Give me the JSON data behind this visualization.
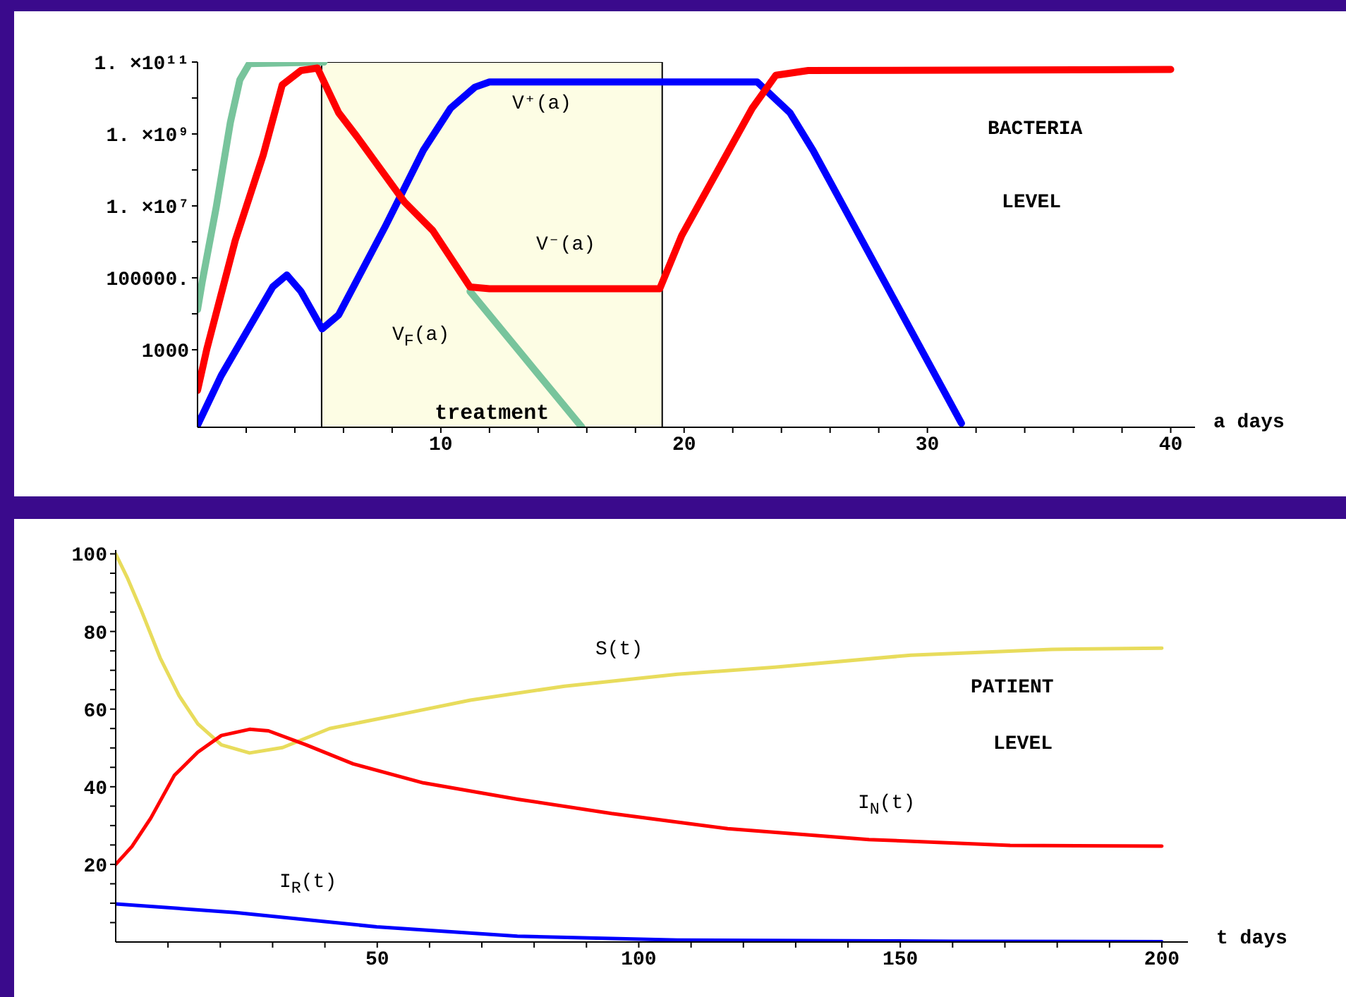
{
  "chart_data": [
    {
      "type": "line",
      "log": true,
      "xlabel": "a days",
      "xlim": [
        0,
        41
      ],
      "xticks": [
        {
          "value": 2,
          "label": null
        },
        {
          "value": 4,
          "label": null
        },
        {
          "value": 6,
          "label": null
        },
        {
          "value": 8,
          "label": null
        },
        10,
        {
          "value": 12,
          "label": null
        },
        {
          "value": 14,
          "label": null
        },
        {
          "value": 16,
          "label": null
        },
        {
          "value": 18,
          "label": null
        },
        20,
        {
          "value": 22,
          "label": null
        },
        {
          "value": 24,
          "label": null
        },
        {
          "value": 26,
          "label": null
        },
        {
          "value": 28,
          "label": null
        },
        30,
        {
          "value": 32,
          "label": null
        },
        {
          "value": 34,
          "label": null
        },
        {
          "value": 36,
          "label": null
        },
        {
          "value": 38,
          "label": null
        },
        40
      ],
      "ylim": [
        7,
        100000000000.0
      ],
      "yticks": [
        1000,
        {
          "value": 10000.0,
          "label": null
        },
        {
          "value": 100000.0,
          "label": "100000."
        },
        {
          "value": 1000000.0,
          "label": null
        },
        {
          "value": 10000000.0,
          "label": "1. ×10⁷"
        },
        {
          "value": 100000000.0,
          "label": null
        },
        {
          "value": 1000000000.0,
          "label": "1. ×10⁹"
        },
        {
          "value": 10000000000.0,
          "label": null
        },
        {
          "value": 100000000000.0,
          "label": "1. ×10¹¹"
        }
      ],
      "bands": [
        {
          "axis": "x",
          "from": 5.1,
          "to": 19.1,
          "label": "treatment",
          "color": "#fdfde4"
        }
      ],
      "series": [
        {
          "name": "V$_{F}$(a)",
          "color": "#78c49c",
          "x": [
            0,
            0.19,
            0.77,
            1.35,
            1.74,
            2.13,
            5.2,
            8,
            11.2,
            15.8
          ],
          "values": [
            13000.0,
            76000.0,
            9300000.0,
            2100000000.0,
            32000000000.0,
            90000000000.0,
            100000000000.0,
            null,
            42000.0,
            7
          ]
        },
        {
          "name": "V⁺(a)",
          "color": "#0000ff",
          "x": [
            0,
            0.97,
            3.09,
            3.67,
            4.25,
            5.12,
            5.8,
            7.73,
            9.28,
            10.4,
            11.4,
            12,
            23,
            24.35,
            25.3,
            31.4
          ],
          "values": [
            8,
            190,
            56000.0,
            120000.0,
            42000.0,
            3800.0,
            9300.0,
            2800000.0,
            350000000.0,
            5200000000.0,
            20000000000.0,
            28000000000.0,
            28000000000.0,
            3900000000.0,
            350000000.0,
            9
          ]
        },
        {
          "name": "V⁻(a)",
          "color": "#ff0000",
          "x": [
            0,
            0.39,
            1.55,
            2.7,
            3.48,
            4.25,
            4.93,
            5.8,
            6.55,
            8.5,
            9.66,
            11.2,
            12,
            19,
            19.9,
            22.8,
            23.77,
            25.1,
            40
          ],
          "values": [
            74,
            1100.0,
            1100000.0,
            260000000.0,
            23000000000.0,
            58000000000.0,
            68000000000.0,
            3900000000.0,
            850000000.0,
            13000000.0,
            2100000.0,
            56000.0,
            50000.0,
            50000.0,
            1500000.0,
            5200000000.0,
            43000000000.0,
            58000000000.0,
            62000000000.0
          ]
        }
      ],
      "annotations": [
        "BACTERIA",
        "LEVEL"
      ]
    },
    {
      "type": "line",
      "xlabel": "t days",
      "xlim": [
        0,
        205
      ],
      "xticks": [
        {
          "value": 10,
          "label": null
        },
        {
          "value": 20,
          "label": null
        },
        {
          "value": 30,
          "label": null
        },
        {
          "value": 40,
          "label": null
        },
        50,
        {
          "value": 60,
          "label": null
        },
        {
          "value": 70,
          "label": null
        },
        {
          "value": 80,
          "label": null
        },
        {
          "value": 90,
          "label": null
        },
        100,
        {
          "value": 110,
          "label": null
        },
        {
          "value": 120,
          "label": null
        },
        {
          "value": 130,
          "label": null
        },
        {
          "value": 140,
          "label": null
        },
        150,
        {
          "value": 160,
          "label": null
        },
        {
          "value": 170,
          "label": null
        },
        {
          "value": 180,
          "label": null
        },
        {
          "value": 190,
          "label": null
        },
        200
      ],
      "ylim": [
        0,
        101
      ],
      "yticks": [
        {
          "value": 5,
          "label": null
        },
        {
          "value": 10,
          "label": null
        },
        {
          "value": 15,
          "label": null
        },
        20,
        {
          "value": 25,
          "label": null
        },
        {
          "value": 30,
          "label": null
        },
        {
          "value": 35,
          "label": null
        },
        40,
        {
          "value": 45,
          "label": null
        },
        {
          "value": 50,
          "label": null
        },
        {
          "value": 55,
          "label": null
        },
        60,
        {
          "value": 65,
          "label": null
        },
        {
          "value": 70,
          "label": null
        },
        {
          "value": 75,
          "label": null
        },
        80,
        {
          "value": 85,
          "label": null
        },
        {
          "value": 90,
          "label": null
        },
        {
          "value": 95,
          "label": null
        },
        100
      ],
      "series": [
        {
          "name": "S(t)",
          "color": "#e8dc5c",
          "x": [
            0,
            2.2,
            4.9,
            8.5,
            12.1,
            15.7,
            20.2,
            25.6,
            31.9,
            40.9,
            54.3,
            67.8,
            85.8,
            107.4,
            126,
            152,
            179,
            200
          ],
          "values": [
            100,
            93.9,
            85.4,
            73.2,
            63.5,
            56.2,
            50.8,
            48.7,
            50.1,
            55,
            58.6,
            62.3,
            65.9,
            69,
            70.8,
            73.9,
            75.4,
            75.7
          ]
        },
        {
          "name": "I$_{N}$(t)",
          "color": "#ff0000",
          "x": [
            0,
            3.1,
            6.7,
            11.2,
            15.7,
            20.2,
            25.6,
            29.2,
            36.4,
            45.4,
            58.8,
            76.8,
            94.8,
            107.4,
            117,
            144,
            171,
            200
          ],
          "values": [
            20,
            24.6,
            31.9,
            42.9,
            48.9,
            53.2,
            54.8,
            54.4,
            50.8,
            45.9,
            41,
            36.8,
            33.1,
            30.9,
            29.2,
            26.4,
            24.9,
            24.7
          ]
        },
        {
          "name": "I$_{R}$(t)",
          "color": "#0000ff",
          "x": [
            0,
            22.9,
            49.9,
            76.8,
            107.4,
            160,
            200
          ],
          "values": [
            9.8,
            7.6,
            3.9,
            1.5,
            0.5,
            0.2,
            0.1
          ]
        }
      ],
      "annotations": [
        "PATIENT",
        "LEVEL"
      ]
    }
  ]
}
